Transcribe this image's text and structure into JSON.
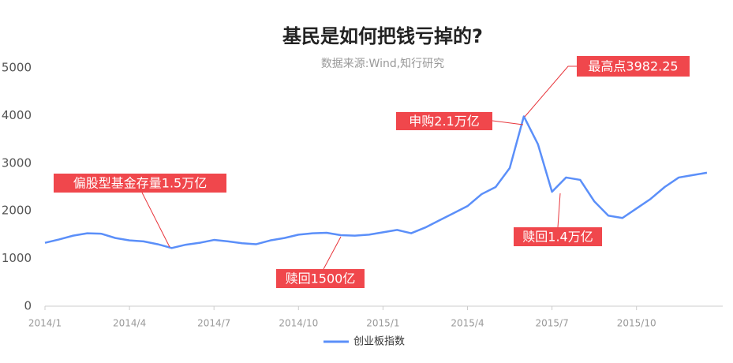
{
  "chart_data": {
    "type": "line",
    "title": "基民是如何把钱亏掉的?",
    "subtitle": "数据来源:Wind,知行研究",
    "categories": [
      "2014/1",
      null,
      null,
      null,
      null,
      null,
      "2014/4",
      null,
      null,
      null,
      null,
      null,
      "2014/7",
      null,
      null,
      null,
      null,
      null,
      "2014/10",
      null,
      null,
      null,
      null,
      null,
      "2015/1",
      null,
      null,
      null,
      null,
      null,
      "2015/4",
      null,
      null,
      null,
      null,
      null,
      "2015/7",
      null,
      null,
      null,
      null,
      null,
      "2015/10",
      null,
      null,
      null,
      null,
      null
    ],
    "series": [
      {
        "name": "创业板指数",
        "color": "#5b8ff9",
        "values": [
          1330,
          1400,
          1480,
          1530,
          1520,
          1430,
          1380,
          1360,
          1300,
          1220,
          1290,
          1330,
          1390,
          1360,
          1320,
          1300,
          1380,
          1430,
          1500,
          1530,
          1540,
          1490,
          1480,
          1500,
          1550,
          1600,
          1530,
          1650,
          1800,
          1950,
          2100,
          2350,
          2500,
          2900,
          3982.25,
          3400,
          2400,
          2700,
          2650,
          2200,
          1900,
          1850,
          2050,
          2250,
          2500,
          2700,
          2750,
          2800
        ]
      }
    ],
    "ylim": [
      0,
      5000
    ],
    "yticks": [
      0,
      1000,
      2000,
      3000,
      4000,
      5000
    ],
    "annotations": [
      "偏股型基金存量1.5万亿",
      "赎回1500亿",
      "申购2.1万亿",
      "最高点3982.25",
      "赎回1.4万亿"
    ],
    "grid": false
  }
}
